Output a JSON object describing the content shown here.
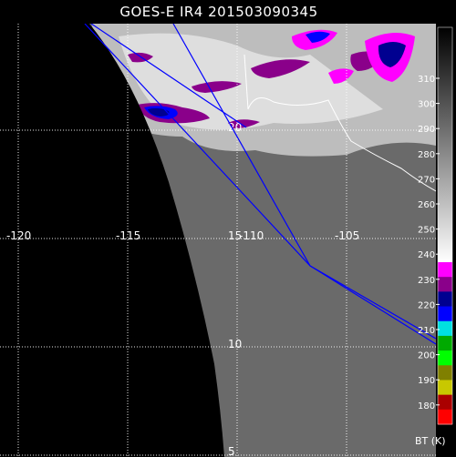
{
  "title": "GOES-E IR4 201503090345",
  "map": {
    "lon_labels": [
      "-120",
      "-115",
      "-110",
      "-105"
    ],
    "lat_labels": [
      "20",
      "15",
      "10",
      "5"
    ],
    "grid_color": "#ffffff",
    "track_color": "#0000ff",
    "coast_color": "#ffffff",
    "space_color": "#000000"
  },
  "colorbar": {
    "units": "BT (K)",
    "ticks": [
      "310",
      "300",
      "290",
      "280",
      "270",
      "260",
      "250",
      "240",
      "230",
      "220",
      "210",
      "200",
      "190",
      "180"
    ],
    "segments": [
      {
        "color": "#ff00ff"
      },
      {
        "color": "#8a008a"
      },
      {
        "color": "#000090"
      },
      {
        "color": "#0000ff"
      },
      {
        "color": "#00e0e0"
      },
      {
        "color": "#00aa00"
      },
      {
        "color": "#00ff00"
      },
      {
        "color": "#808000"
      },
      {
        "color": "#c8c800"
      },
      {
        "color": "#aa0000"
      },
      {
        "color": "#ff0000"
      }
    ]
  }
}
